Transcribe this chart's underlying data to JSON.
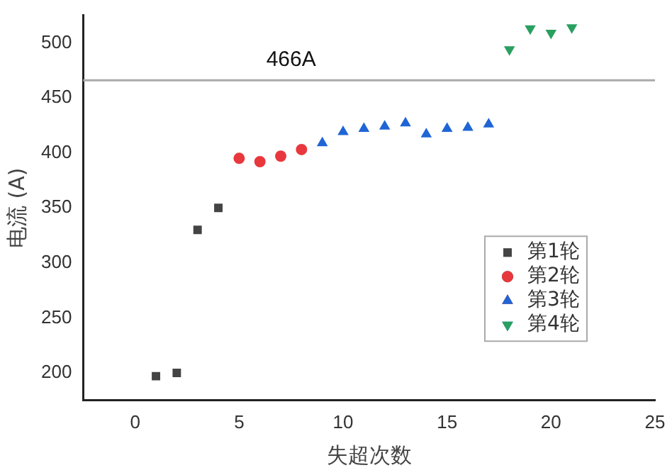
{
  "chart_data": {
    "type": "scatter",
    "xlabel": "失超次数",
    "ylabel": "电流 (A)",
    "xlim": [
      -2.5,
      25
    ],
    "xticks": [
      0,
      5,
      10,
      15,
      20,
      25
    ],
    "ylim": [
      175,
      525
    ],
    "yticks": [
      200,
      250,
      300,
      350,
      400,
      450,
      500
    ],
    "grid": false,
    "legend": "right",
    "series": [
      {
        "name": "第1轮",
        "color": "#444444",
        "marker": "square",
        "x": [
          1,
          2,
          3,
          4
        ],
        "values": [
          197,
          200,
          330,
          350
        ]
      },
      {
        "name": "第2轮",
        "color": "#e8383d",
        "marker": "circle",
        "x": [
          5,
          6,
          7,
          8
        ],
        "values": [
          395,
          392,
          397,
          403
        ]
      },
      {
        "name": "第3轮",
        "color": "#1f65d6",
        "marker": "triangle",
        "x": [
          9,
          10,
          11,
          12,
          13,
          14,
          15,
          16,
          17
        ],
        "values": [
          409,
          419,
          422,
          424,
          427,
          417,
          422,
          423,
          426
        ]
      },
      {
        "name": "第4轮",
        "color": "#2aa060",
        "marker": "triangle-down",
        "x": [
          18,
          19,
          20,
          21
        ],
        "values": [
          494,
          513,
          509,
          514
        ]
      }
    ],
    "ref_lines": [
      {
        "axis": "y",
        "value": 466,
        "label": "466A",
        "color": "#aaaaaa"
      }
    ]
  }
}
